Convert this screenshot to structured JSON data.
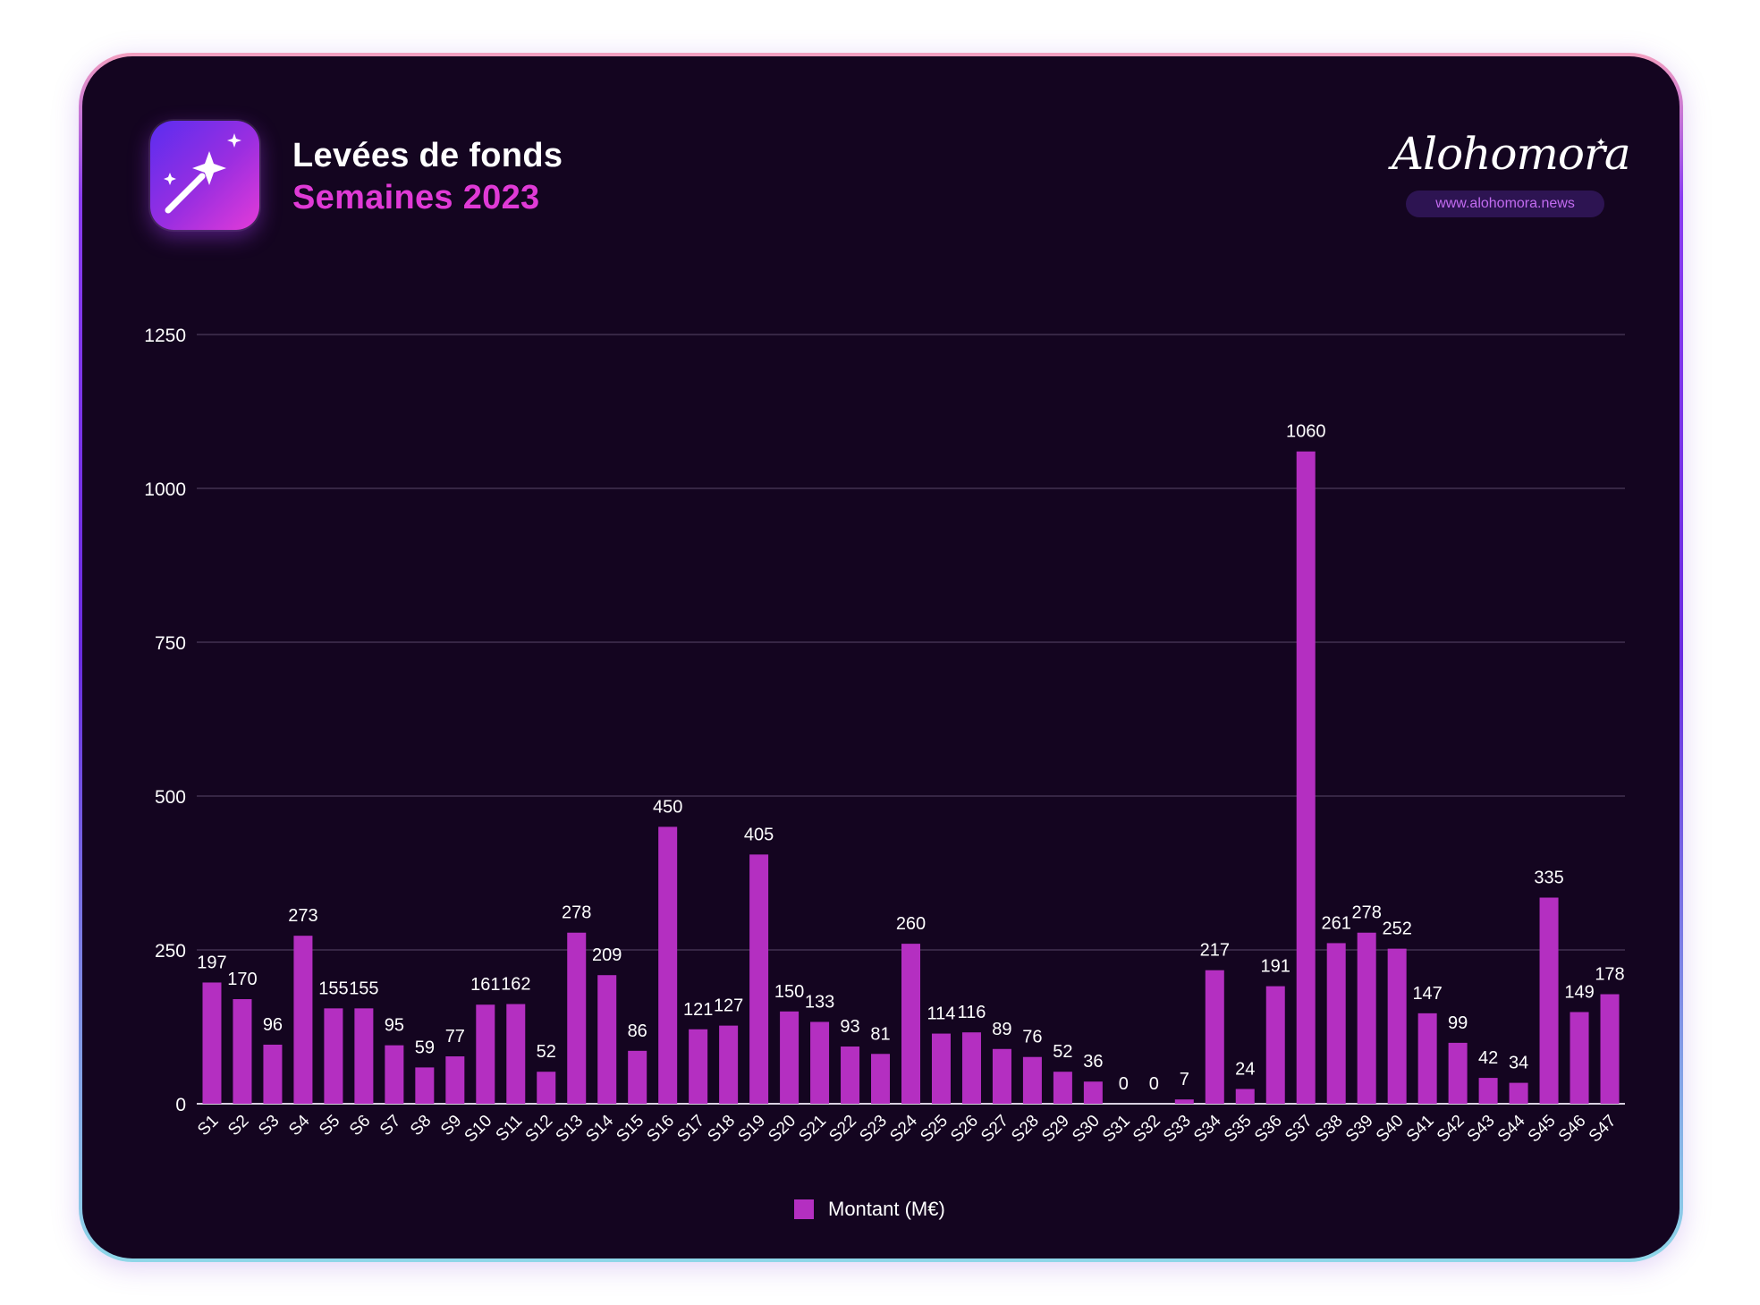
{
  "header": {
    "title": "Levées de fonds",
    "subtitle": "Semaines 2023",
    "icon": "magic-wand-icon"
  },
  "brand": {
    "logo_text": "Alohomora",
    "url": "www.alohomora.news"
  },
  "colors": {
    "background": "#140520",
    "bar": "#b42fc1",
    "accent": "#e03ad6",
    "grid": "#4a3a5a"
  },
  "chart_data": {
    "type": "bar",
    "categories": [
      "S1",
      "S2",
      "S3",
      "S4",
      "S5",
      "S6",
      "S7",
      "S8",
      "S9",
      "S10",
      "S11",
      "S12",
      "S13",
      "S14",
      "S15",
      "S16",
      "S17",
      "S18",
      "S19",
      "S20",
      "S21",
      "S22",
      "S23",
      "S24",
      "S25",
      "S26",
      "S27",
      "S28",
      "S29",
      "S30",
      "S31",
      "S32",
      "S33",
      "S34",
      "S35",
      "S36",
      "S37",
      "S38",
      "S39",
      "S40",
      "S41",
      "S42",
      "S43",
      "S44",
      "S45",
      "S46",
      "S47"
    ],
    "series": [
      {
        "name": "Montant (M€)",
        "values": [
          197,
          170,
          96,
          273,
          155,
          155,
          95,
          59,
          77,
          161,
          162,
          52,
          278,
          209,
          86,
          450,
          121,
          127,
          405,
          150,
          133,
          93,
          81,
          260,
          114,
          116,
          89,
          76,
          52,
          36,
          0,
          0,
          7,
          217,
          24,
          191,
          1060,
          261,
          278,
          252,
          147,
          99,
          42,
          34,
          335,
          149,
          178
        ]
      }
    ],
    "yticks": [
      0,
      250,
      500,
      750,
      1000,
      1250
    ],
    "ylim": [
      0,
      1250
    ],
    "grid": true,
    "legend": "bottom"
  }
}
